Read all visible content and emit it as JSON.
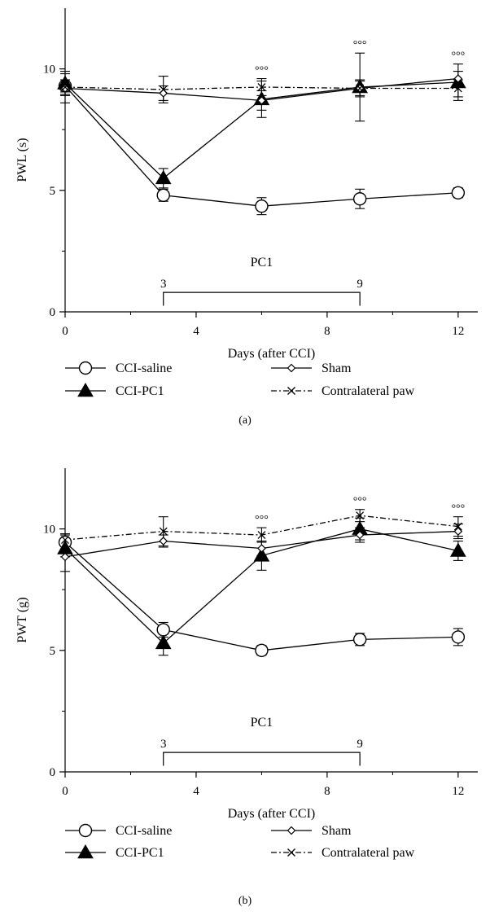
{
  "chart_data": [
    {
      "type": "line",
      "panel_label": "(a)",
      "xlabel": "Days (after CCI)",
      "ylabel": "PWL (s)",
      "x_ticks": [
        0,
        4,
        8,
        12
      ],
      "y_ticks": [
        0,
        5,
        10
      ],
      "xlim": [
        0,
        12.6
      ],
      "ylim": [
        0,
        12.5
      ],
      "treatment": {
        "label": "PC1",
        "start": 3,
        "end": 9,
        "start_label": "3",
        "end_label": "9"
      },
      "significance_marker": "°°°",
      "significance_x": [
        6,
        9,
        12
      ],
      "series": [
        {
          "name": "CCI-saline",
          "marker": "circle",
          "dash": "none",
          "x": [
            0,
            3,
            6,
            9,
            12
          ],
          "y": [
            9.3,
            4.8,
            4.35,
            4.65,
            4.9
          ],
          "err": [
            0.25,
            0.25,
            0.35,
            0.4,
            0.2
          ]
        },
        {
          "name": "CCI-PC1",
          "marker": "triangle",
          "dash": "none",
          "x": [
            0,
            3,
            6,
            9,
            12
          ],
          "y": [
            9.4,
            5.5,
            8.75,
            9.25,
            9.45
          ],
          "err": [
            0.5,
            0.4,
            0.75,
            1.4,
            0.75
          ]
        },
        {
          "name": "Sham",
          "marker": "diamond",
          "dash": "none",
          "x": [
            0,
            3,
            6,
            9,
            12
          ],
          "y": [
            9.2,
            9.0,
            8.7,
            9.2,
            9.6
          ],
          "err": [
            0.6,
            0.3,
            0.4,
            0.3,
            0.3
          ]
        },
        {
          "name": "Contralateral paw",
          "marker": "x",
          "dash": "dashdot",
          "x": [
            0,
            3,
            6,
            9,
            12
          ],
          "y": [
            9.25,
            9.15,
            9.25,
            9.2,
            9.2
          ],
          "err": [
            0.3,
            0.55,
            0.35,
            0.35,
            0.35
          ]
        }
      ]
    },
    {
      "type": "line",
      "panel_label": "(b)",
      "xlabel": "Days (after CCI)",
      "ylabel": "PWT (g)",
      "x_ticks": [
        0,
        4,
        8,
        12
      ],
      "y_ticks": [
        0,
        5,
        10
      ],
      "xlim": [
        0,
        12.6
      ],
      "ylim": [
        0,
        12.5
      ],
      "treatment": {
        "label": "PC1",
        "start": 3,
        "end": 9,
        "start_label": "3",
        "end_label": "9"
      },
      "significance_marker": "°°°",
      "significance_x": [
        6,
        9,
        12
      ],
      "series": [
        {
          "name": "CCI-saline",
          "marker": "circle",
          "dash": "none",
          "x": [
            0,
            3,
            6,
            9,
            12
          ],
          "y": [
            9.45,
            5.85,
            5.0,
            5.45,
            5.55
          ],
          "err": [
            0.3,
            0.3,
            0.2,
            0.25,
            0.35
          ]
        },
        {
          "name": "CCI-PC1",
          "marker": "triangle",
          "dash": "none",
          "x": [
            0,
            3,
            6,
            9,
            12
          ],
          "y": [
            9.2,
            5.3,
            8.9,
            10.0,
            9.1
          ],
          "err": [
            0.35,
            0.5,
            0.6,
            0.45,
            0.4
          ]
        },
        {
          "name": "Sham",
          "marker": "diamond",
          "dash": "none",
          "x": [
            0,
            3,
            6,
            9,
            12
          ],
          "y": [
            8.85,
            9.5,
            9.2,
            9.75,
            9.9
          ],
          "err": [
            0.6,
            0.25,
            0.3,
            0.3,
            0.3
          ]
        },
        {
          "name": "Contralateral paw",
          "marker": "x",
          "dash": "dashdot",
          "x": [
            0,
            3,
            6,
            9,
            12
          ],
          "y": [
            9.55,
            9.9,
            9.75,
            10.55,
            10.1
          ],
          "err": [
            0.25,
            0.6,
            0.3,
            0.25,
            0.4
          ]
        }
      ]
    }
  ]
}
